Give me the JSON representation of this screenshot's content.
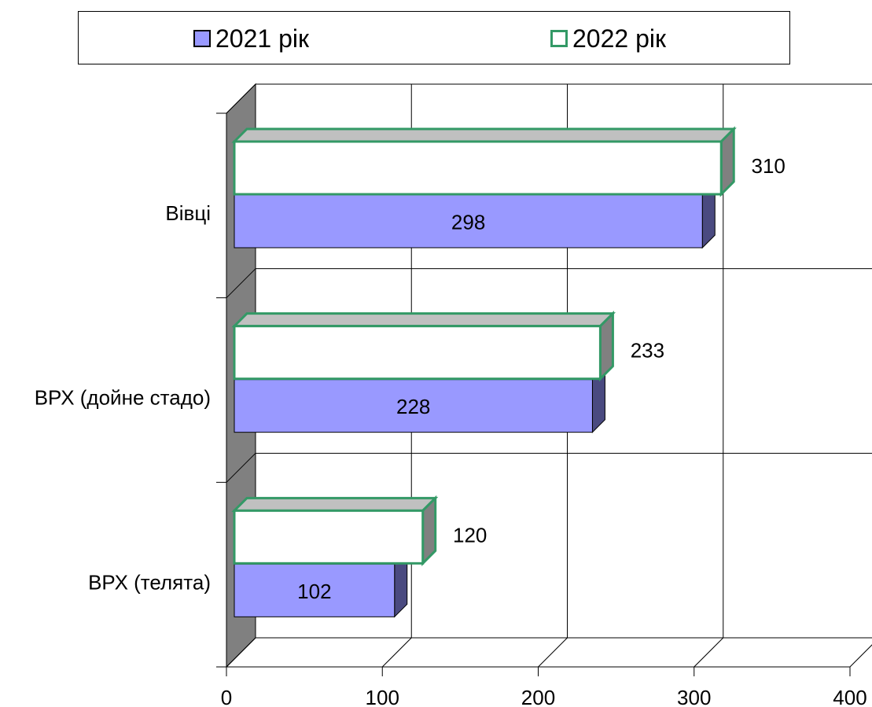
{
  "chart_data": {
    "type": "bar",
    "orientation": "horizontal",
    "style": "3d",
    "categories": [
      "Вівці",
      "ВРХ (дойне стадо)",
      "ВРХ (телята)"
    ],
    "series": [
      {
        "name": "2021 рік",
        "values": [
          298,
          228,
          102
        ],
        "color": "#9999ff",
        "side_color": "#4a4a80",
        "border": "#000000"
      },
      {
        "name": "2022 рік",
        "values": [
          310,
          233,
          120
        ],
        "color": "#ffffff",
        "side_color": "#808080",
        "border": "#339966"
      }
    ],
    "xlim": [
      0,
      400
    ],
    "xticks": [
      "0",
      "100",
      "200",
      "300",
      "400"
    ],
    "grid": true,
    "legend_position": "top",
    "wall_color": "#808080",
    "top_color": "#c0c0c0"
  }
}
